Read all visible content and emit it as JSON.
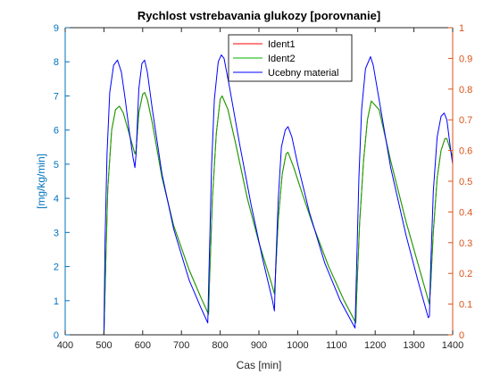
{
  "chart_data": {
    "type": "line",
    "title": "Rychlost vstrebavania glukozy [porovnanie]",
    "xlabel": "Cas [min]",
    "ylabel_left": "[mg/kg/min]",
    "ylabel_right": "",
    "xlim": [
      400,
      1400
    ],
    "ylim_left": [
      0,
      9
    ],
    "ylim_right": [
      0,
      1
    ],
    "xticks": [
      "400",
      "500",
      "600",
      "700",
      "800",
      "900",
      "1000",
      "1100",
      "1200",
      "1300",
      "1400"
    ],
    "yticks_left": [
      "0",
      "1",
      "2",
      "3",
      "4",
      "5",
      "6",
      "7",
      "8",
      "9"
    ],
    "yticks_right": [
      "0",
      "0.1",
      "0.2",
      "0.3",
      "0.4",
      "0.5",
      "0.6",
      "0.7",
      "0.8",
      "0.9",
      "1"
    ],
    "legend_position": "top-right",
    "colors": {
      "left_axis": "#0072BD",
      "right_axis": "#D95319",
      "axis": "#262626"
    },
    "series": [
      {
        "name": "Ident1",
        "color": "#FF0000",
        "axis": "left",
        "x": [
          500,
          505,
          510,
          520,
          530,
          540,
          550,
          560,
          570,
          580,
          583,
          590,
          600,
          605,
          612,
          625,
          650,
          680,
          720,
          750,
          770,
          772,
          780,
          790,
          800,
          805,
          820,
          840,
          870,
          900,
          930,
          940,
          943,
          950,
          960,
          970,
          975,
          990,
          1010,
          1040,
          1080,
          1120,
          1150,
          1152,
          1160,
          1170,
          1180,
          1190,
          1210,
          1240,
          1280,
          1310,
          1340,
          1343,
          1350,
          1360,
          1370,
          1380,
          1385,
          1400
        ],
        "y": [
          0,
          2.2,
          4.3,
          6.0,
          6.6,
          6.7,
          6.5,
          6.1,
          5.7,
          5.3,
          5.4,
          6.5,
          7.05,
          7.1,
          6.9,
          6.2,
          4.6,
          3.2,
          1.9,
          1.1,
          0.6,
          1.4,
          4.0,
          5.9,
          6.9,
          7.0,
          6.6,
          5.6,
          4.0,
          2.7,
          1.6,
          1.2,
          1.8,
          3.4,
          4.7,
          5.3,
          5.35,
          4.9,
          4.2,
          3.2,
          2.0,
          1.0,
          0.35,
          1.1,
          3.3,
          5.1,
          6.3,
          6.85,
          6.6,
          5.1,
          3.3,
          2.1,
          0.9,
          1.4,
          3.0,
          4.6,
          5.4,
          5.75,
          5.75,
          5.2
        ]
      },
      {
        "name": "Ident2",
        "color": "#00B000",
        "axis": "left",
        "x": [
          500,
          505,
          510,
          520,
          530,
          540,
          550,
          560,
          570,
          580,
          583,
          590,
          600,
          605,
          612,
          625,
          650,
          680,
          720,
          750,
          770,
          772,
          780,
          790,
          800,
          805,
          820,
          840,
          870,
          900,
          930,
          940,
          943,
          950,
          960,
          970,
          975,
          990,
          1010,
          1040,
          1080,
          1120,
          1150,
          1152,
          1160,
          1170,
          1180,
          1190,
          1210,
          1240,
          1280,
          1310,
          1340,
          1343,
          1350,
          1360,
          1370,
          1380,
          1385,
          1400
        ],
        "y": [
          0,
          2.2,
          4.3,
          6.0,
          6.6,
          6.7,
          6.5,
          6.1,
          5.7,
          5.3,
          5.4,
          6.5,
          7.05,
          7.1,
          6.9,
          6.2,
          4.6,
          3.2,
          1.9,
          1.1,
          0.6,
          1.4,
          4.0,
          5.9,
          6.9,
          7.0,
          6.6,
          5.6,
          4.0,
          2.7,
          1.6,
          1.2,
          1.8,
          3.4,
          4.7,
          5.3,
          5.35,
          4.9,
          4.2,
          3.2,
          2.0,
          1.0,
          0.35,
          1.1,
          3.3,
          5.1,
          6.3,
          6.85,
          6.6,
          5.1,
          3.3,
          2.1,
          0.9,
          1.4,
          3.0,
          4.6,
          5.4,
          5.75,
          5.75,
          5.2
        ]
      },
      {
        "name": "Ucebny material",
        "color": "#0000FF",
        "axis": "left",
        "x": [
          500,
          503,
          508,
          515,
          525,
          535,
          545,
          555,
          565,
          575,
          580,
          583,
          590,
          598,
          605,
          612,
          625,
          650,
          680,
          720,
          750,
          768,
          771,
          778,
          785,
          795,
          803,
          810,
          825,
          850,
          880,
          910,
          935,
          940,
          943,
          950,
          958,
          968,
          975,
          985,
          1000,
          1030,
          1070,
          1110,
          1148,
          1151,
          1158,
          1165,
          1175,
          1188,
          1195,
          1210,
          1240,
          1280,
          1310,
          1337,
          1340,
          1343,
          1350,
          1360,
          1370,
          1378,
          1385,
          1395,
          1400
        ],
        "y": [
          0,
          2.8,
          5.3,
          7.1,
          7.9,
          8.05,
          7.7,
          6.9,
          6.0,
          5.2,
          4.9,
          5.3,
          7.2,
          7.95,
          8.05,
          7.7,
          6.6,
          4.7,
          3.1,
          1.6,
          0.8,
          0.35,
          1.8,
          5.0,
          6.9,
          8.0,
          8.2,
          8.1,
          7.2,
          5.6,
          3.8,
          2.2,
          1.0,
          0.7,
          1.9,
          4.0,
          5.5,
          6.0,
          6.1,
          5.8,
          5.0,
          3.6,
          2.1,
          1.0,
          0.2,
          1.5,
          4.6,
          6.6,
          7.8,
          8.15,
          7.9,
          6.9,
          4.9,
          2.9,
          1.6,
          0.5,
          0.55,
          1.9,
          4.2,
          5.8,
          6.4,
          6.5,
          6.3,
          5.4,
          5.0
        ]
      }
    ]
  }
}
